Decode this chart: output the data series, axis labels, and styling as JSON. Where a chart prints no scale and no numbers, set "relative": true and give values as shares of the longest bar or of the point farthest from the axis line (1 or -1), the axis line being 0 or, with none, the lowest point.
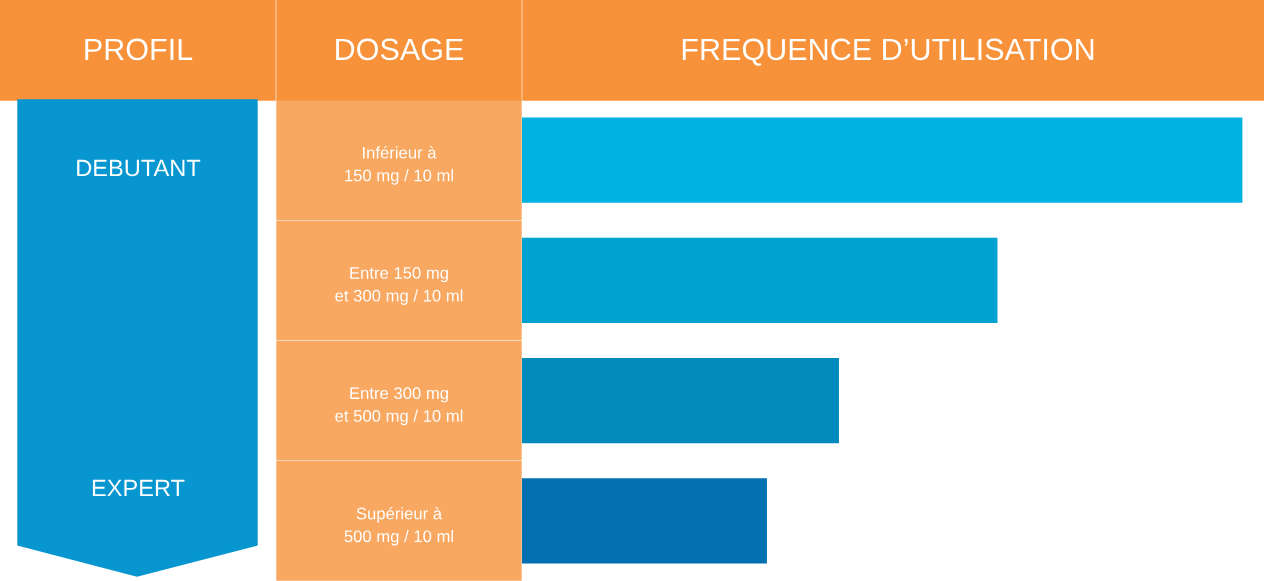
{
  "chart_data": {
    "type": "bar",
    "orientation": "horizontal",
    "relative": true,
    "ylabel": "DOSAGE",
    "xlabel": "FREQUENCE D’UTILISATION",
    "categories": [
      "Inférieur à\n150 mg / 10 ml",
      "Entre 150 mg\net 300 mg / 10 ml",
      "Entre 300 mg\net 500 mg / 10 ml",
      "Supérieur à\n500 mg / 10 ml"
    ],
    "values": [
      1,
      0.66,
      0.44,
      0.34
    ],
    "colors": [
      "#00b1e1",
      "#00a2d2",
      "#038bbe",
      "#0270b1"
    ],
    "annotations": [
      "PROFIL",
      "DEBUTANT",
      "EXPERT"
    ]
  }
}
